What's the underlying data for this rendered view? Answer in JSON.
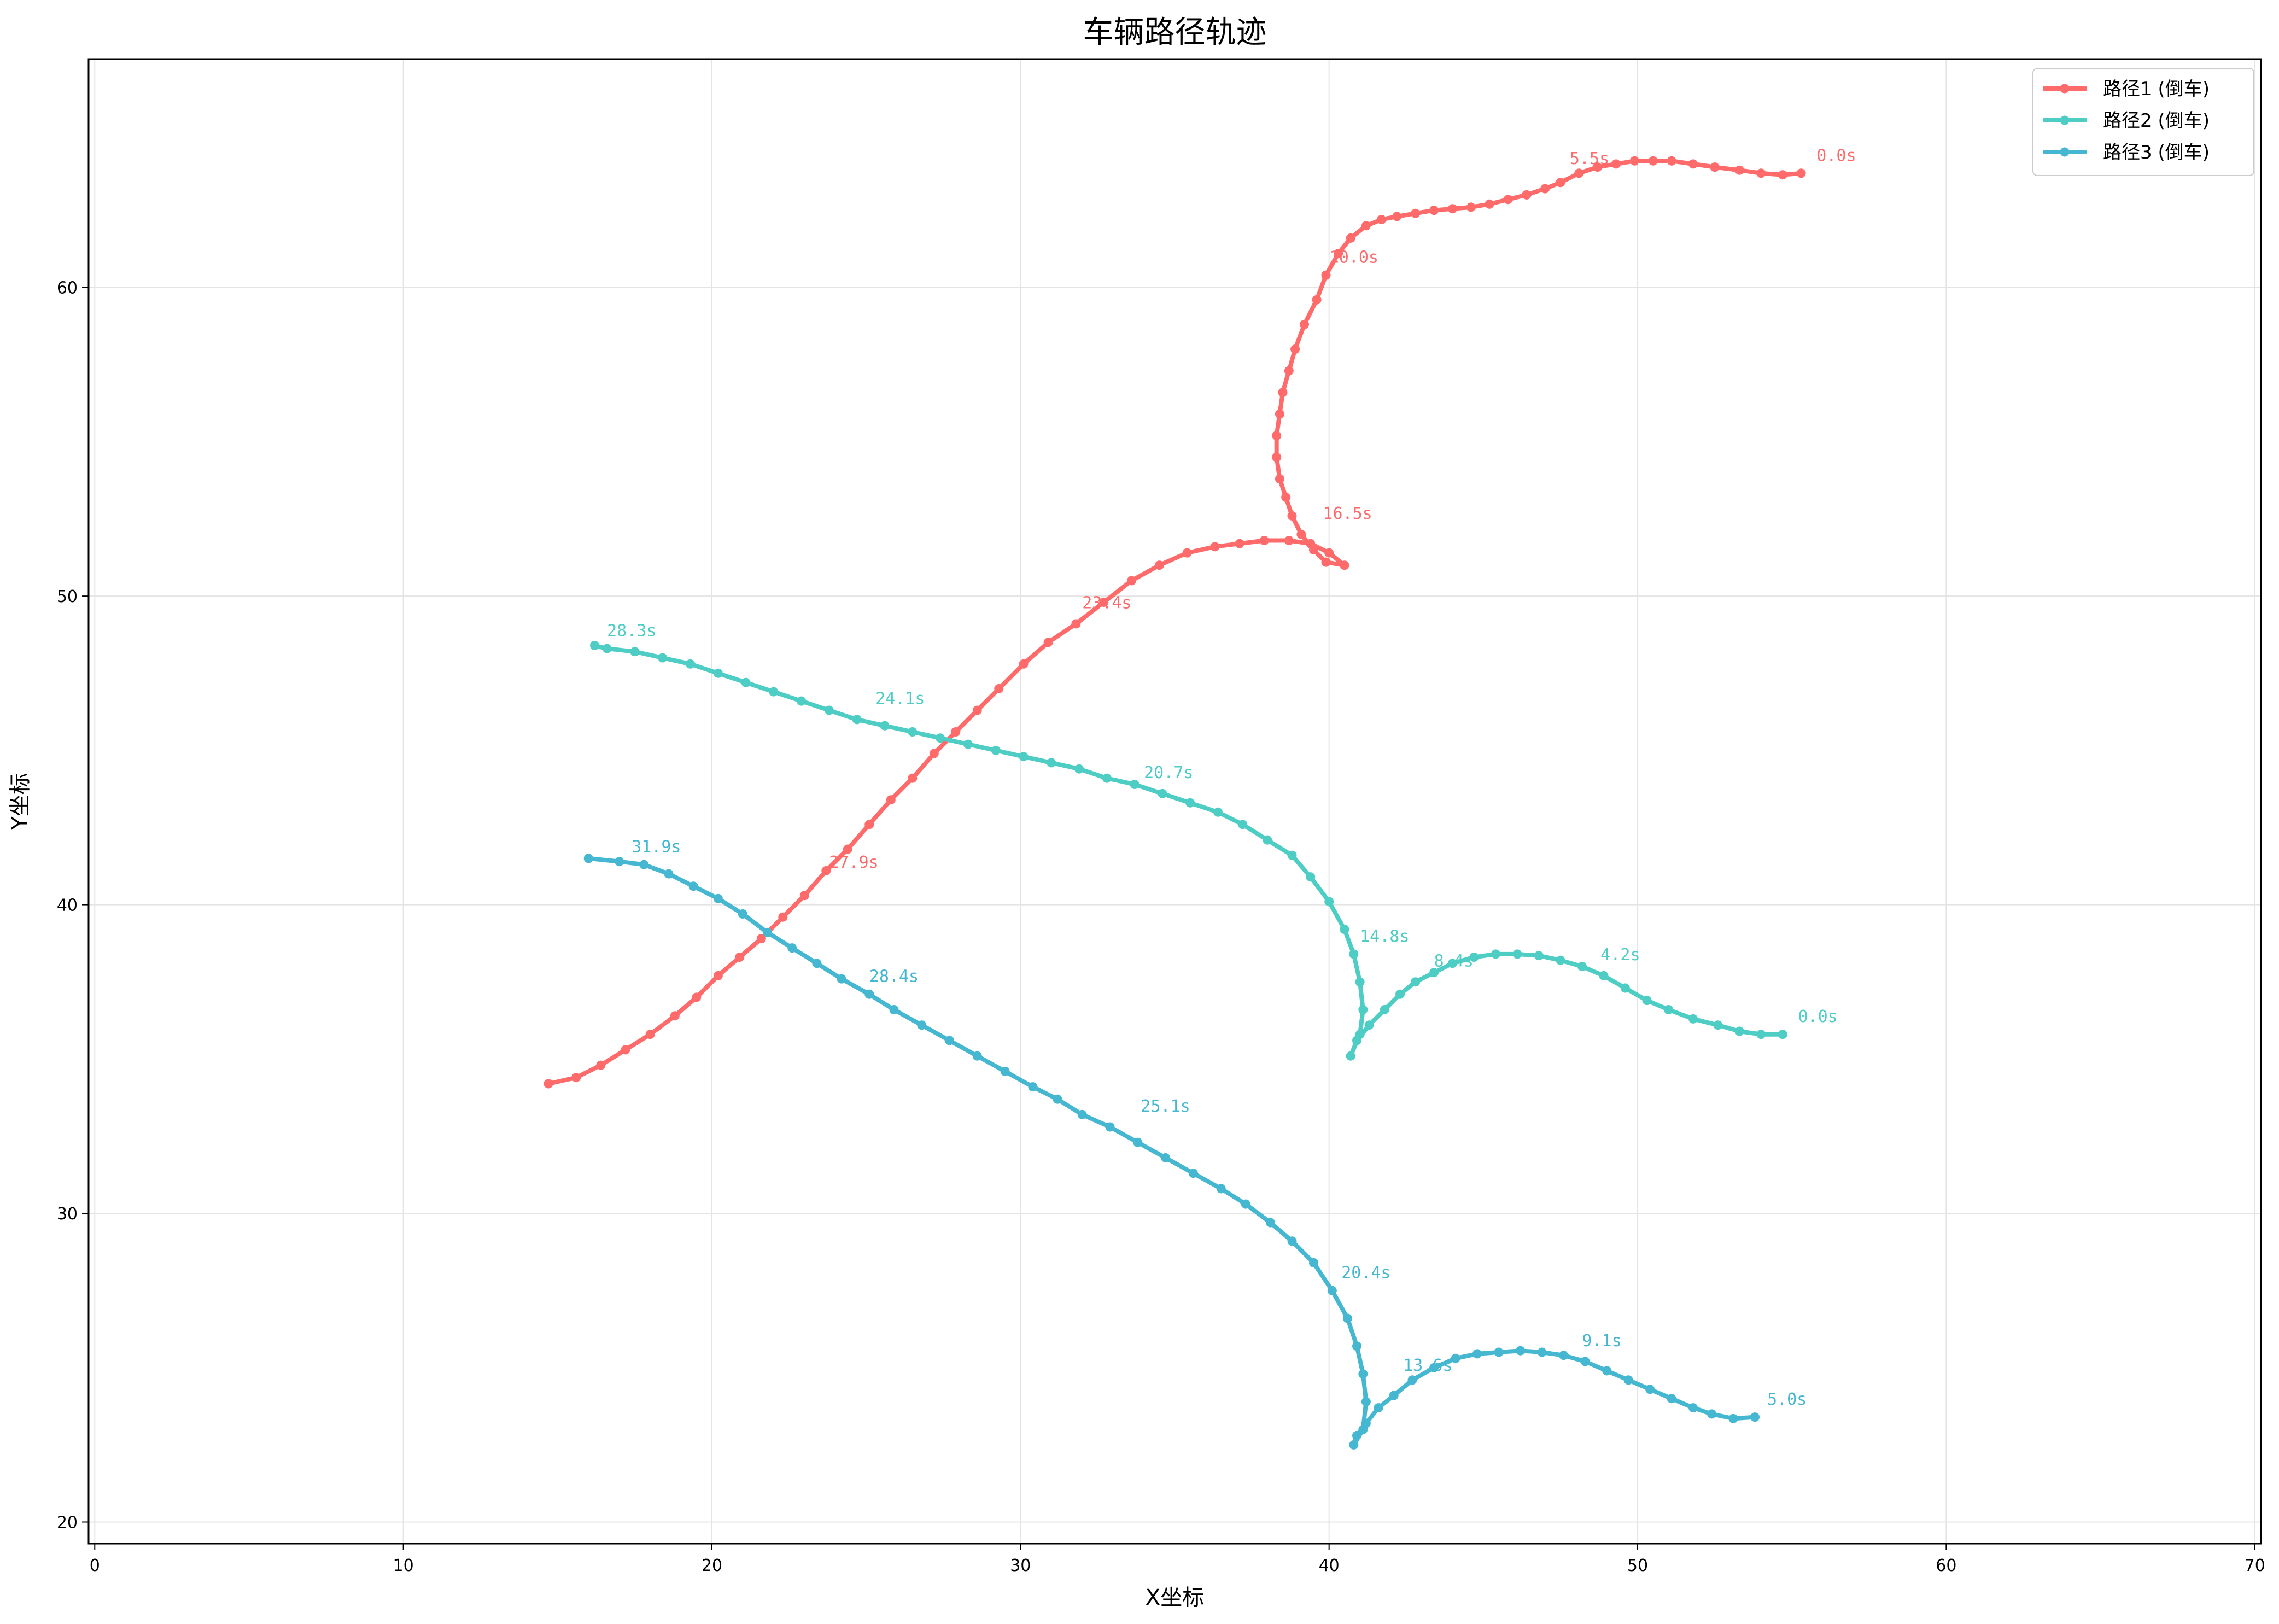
{
  "chart_data": {
    "type": "line",
    "title": "车辆路径轨迹",
    "xlabel": "X坐标",
    "ylabel": "Y坐标",
    "xlim": [
      -0.2,
      70.2
    ],
    "ylim": [
      19.3,
      67.4
    ],
    "xticks": [
      0,
      10,
      20,
      30,
      40,
      50,
      60,
      70
    ],
    "yticks": [
      20,
      30,
      40,
      50,
      60
    ],
    "grid": true,
    "legend": "top-right",
    "series": [
      {
        "name": "路径1 (倒车)",
        "color": "#ff6b6b",
        "points": [
          [
            55.3,
            63.7
          ],
          [
            54.7,
            63.65
          ],
          [
            54.0,
            63.7
          ],
          [
            53.3,
            63.8
          ],
          [
            52.5,
            63.9
          ],
          [
            51.8,
            64.0
          ],
          [
            51.1,
            64.1
          ],
          [
            50.5,
            64.1
          ],
          [
            49.9,
            64.1
          ],
          [
            49.3,
            64.0
          ],
          [
            48.7,
            63.9
          ],
          [
            48.1,
            63.7
          ],
          [
            47.5,
            63.4
          ],
          [
            47.0,
            63.2
          ],
          [
            46.4,
            63.0
          ],
          [
            45.8,
            62.85
          ],
          [
            45.2,
            62.7
          ],
          [
            44.6,
            62.6
          ],
          [
            44.0,
            62.55
          ],
          [
            43.4,
            62.5
          ],
          [
            42.8,
            62.4
          ],
          [
            42.2,
            62.3
          ],
          [
            41.7,
            62.2
          ],
          [
            41.2,
            62.0
          ],
          [
            40.7,
            61.6
          ],
          [
            40.3,
            61.1
          ],
          [
            39.9,
            60.4
          ],
          [
            39.6,
            59.6
          ],
          [
            39.2,
            58.8
          ],
          [
            38.9,
            58.0
          ],
          [
            38.7,
            57.3
          ],
          [
            38.5,
            56.6
          ],
          [
            38.4,
            55.9
          ],
          [
            38.3,
            55.2
          ],
          [
            38.3,
            54.5
          ],
          [
            38.4,
            53.8
          ],
          [
            38.6,
            53.2
          ],
          [
            38.8,
            52.6
          ],
          [
            39.1,
            52.0
          ],
          [
            39.5,
            51.5
          ],
          [
            39.9,
            51.1
          ],
          [
            40.5,
            51.0
          ],
          [
            40.0,
            51.4
          ],
          [
            39.4,
            51.7
          ],
          [
            38.7,
            51.8
          ],
          [
            37.9,
            51.8
          ],
          [
            37.1,
            51.7
          ],
          [
            36.3,
            51.6
          ],
          [
            35.4,
            51.4
          ],
          [
            34.5,
            51.0
          ],
          [
            33.6,
            50.5
          ],
          [
            32.7,
            49.8
          ],
          [
            31.8,
            49.1
          ],
          [
            30.9,
            48.5
          ],
          [
            30.1,
            47.8
          ],
          [
            29.3,
            47.0
          ],
          [
            28.6,
            46.3
          ],
          [
            27.9,
            45.6
          ],
          [
            27.2,
            44.9
          ],
          [
            26.5,
            44.1
          ],
          [
            25.8,
            43.4
          ],
          [
            25.1,
            42.6
          ],
          [
            24.4,
            41.8
          ],
          [
            23.7,
            41.1
          ],
          [
            23.0,
            40.3
          ],
          [
            22.3,
            39.6
          ],
          [
            21.6,
            38.9
          ],
          [
            20.9,
            38.3
          ],
          [
            20.2,
            37.7
          ],
          [
            19.5,
            37.0
          ],
          [
            18.8,
            36.4
          ],
          [
            18.0,
            35.8
          ],
          [
            17.2,
            35.3
          ],
          [
            16.4,
            34.8
          ],
          [
            15.6,
            34.4
          ],
          [
            14.7,
            34.2
          ]
        ]
      },
      {
        "name": "路径2 (倒车)",
        "color": "#4ecdc4",
        "points": [
          [
            54.7,
            35.8
          ],
          [
            54.0,
            35.8
          ],
          [
            53.3,
            35.9
          ],
          [
            52.6,
            36.1
          ],
          [
            51.8,
            36.3
          ],
          [
            51.0,
            36.6
          ],
          [
            50.3,
            36.9
          ],
          [
            49.6,
            37.3
          ],
          [
            48.9,
            37.7
          ],
          [
            48.2,
            38.0
          ],
          [
            47.5,
            38.2
          ],
          [
            46.8,
            38.35
          ],
          [
            46.1,
            38.4
          ],
          [
            45.4,
            38.4
          ],
          [
            44.7,
            38.3
          ],
          [
            44.0,
            38.1
          ],
          [
            43.4,
            37.8
          ],
          [
            42.8,
            37.5
          ],
          [
            42.3,
            37.1
          ],
          [
            41.8,
            36.6
          ],
          [
            41.3,
            36.1
          ],
          [
            40.9,
            35.6
          ],
          [
            40.7,
            35.1
          ],
          [
            41.0,
            35.8
          ],
          [
            41.1,
            36.6
          ],
          [
            41.0,
            37.5
          ],
          [
            40.8,
            38.4
          ],
          [
            40.5,
            39.2
          ],
          [
            40.0,
            40.1
          ],
          [
            39.4,
            40.9
          ],
          [
            38.8,
            41.6
          ],
          [
            38.0,
            42.1
          ],
          [
            37.2,
            42.6
          ],
          [
            36.4,
            43.0
          ],
          [
            35.5,
            43.3
          ],
          [
            34.6,
            43.6
          ],
          [
            33.7,
            43.9
          ],
          [
            32.8,
            44.1
          ],
          [
            31.9,
            44.4
          ],
          [
            31.0,
            44.6
          ],
          [
            30.1,
            44.8
          ],
          [
            29.2,
            45.0
          ],
          [
            28.3,
            45.2
          ],
          [
            27.4,
            45.4
          ],
          [
            26.5,
            45.6
          ],
          [
            25.6,
            45.8
          ],
          [
            24.7,
            46.0
          ],
          [
            23.8,
            46.3
          ],
          [
            22.9,
            46.6
          ],
          [
            22.0,
            46.9
          ],
          [
            21.1,
            47.2
          ],
          [
            20.2,
            47.5
          ],
          [
            19.3,
            47.8
          ],
          [
            18.4,
            48.0
          ],
          [
            17.5,
            48.2
          ],
          [
            16.6,
            48.3
          ],
          [
            16.2,
            48.4
          ]
        ]
      },
      {
        "name": "路径3 (倒车)",
        "color": "#45b7d1",
        "points": [
          [
            53.8,
            23.4
          ],
          [
            53.1,
            23.35
          ],
          [
            52.4,
            23.5
          ],
          [
            51.8,
            23.7
          ],
          [
            51.1,
            24.0
          ],
          [
            50.4,
            24.3
          ],
          [
            49.7,
            24.6
          ],
          [
            49.0,
            24.9
          ],
          [
            48.3,
            25.2
          ],
          [
            47.6,
            25.4
          ],
          [
            46.9,
            25.5
          ],
          [
            46.2,
            25.55
          ],
          [
            45.5,
            25.5
          ],
          [
            44.8,
            25.45
          ],
          [
            44.1,
            25.3
          ],
          [
            43.4,
            25.0
          ],
          [
            42.7,
            24.6
          ],
          [
            42.1,
            24.1
          ],
          [
            41.6,
            23.7
          ],
          [
            41.2,
            23.2
          ],
          [
            40.9,
            22.8
          ],
          [
            40.8,
            22.5
          ],
          [
            41.1,
            23.0
          ],
          [
            41.2,
            23.9
          ],
          [
            41.1,
            24.8
          ],
          [
            40.9,
            25.7
          ],
          [
            40.6,
            26.6
          ],
          [
            40.1,
            27.5
          ],
          [
            39.5,
            28.4
          ],
          [
            38.8,
            29.1
          ],
          [
            38.1,
            29.7
          ],
          [
            37.3,
            30.3
          ],
          [
            36.5,
            30.8
          ],
          [
            35.6,
            31.3
          ],
          [
            34.7,
            31.8
          ],
          [
            33.8,
            32.3
          ],
          [
            32.9,
            32.8
          ],
          [
            32.0,
            33.2
          ],
          [
            31.2,
            33.7
          ],
          [
            30.4,
            34.1
          ],
          [
            29.5,
            34.6
          ],
          [
            28.6,
            35.1
          ],
          [
            27.7,
            35.6
          ],
          [
            26.8,
            36.1
          ],
          [
            25.9,
            36.6
          ],
          [
            25.1,
            37.1
          ],
          [
            24.2,
            37.6
          ],
          [
            23.4,
            38.1
          ],
          [
            22.6,
            38.6
          ],
          [
            21.8,
            39.1
          ],
          [
            21.0,
            39.7
          ],
          [
            20.2,
            40.2
          ],
          [
            19.4,
            40.6
          ],
          [
            18.6,
            41.0
          ],
          [
            17.8,
            41.3
          ],
          [
            17.0,
            41.4
          ],
          [
            16.0,
            41.5
          ]
        ]
      }
    ],
    "annotations": [
      {
        "text": "0.0s",
        "x": 55.8,
        "y": 64.1,
        "series": 0
      },
      {
        "text": "5.5s",
        "x": 47.8,
        "y": 64.0,
        "series": 0
      },
      {
        "text": "10.0s",
        "x": 40.0,
        "y": 60.8,
        "series": 0
      },
      {
        "text": "16.5s",
        "x": 39.8,
        "y": 52.5,
        "series": 0
      },
      {
        "text": "23.4s",
        "x": 32.0,
        "y": 49.6,
        "series": 0
      },
      {
        "text": "27.9s",
        "x": 23.8,
        "y": 41.2,
        "series": 0
      },
      {
        "text": "0.0s",
        "x": 55.2,
        "y": 36.2,
        "series": 1
      },
      {
        "text": "4.2s",
        "x": 48.8,
        "y": 38.2,
        "series": 1
      },
      {
        "text": "8.4s",
        "x": 43.4,
        "y": 38.0,
        "series": 1
      },
      {
        "text": "14.8s",
        "x": 41.0,
        "y": 38.8,
        "series": 1
      },
      {
        "text": "20.7s",
        "x": 34.0,
        "y": 44.1,
        "series": 1
      },
      {
        "text": "24.1s",
        "x": 25.3,
        "y": 46.5,
        "series": 1
      },
      {
        "text": "28.3s",
        "x": 16.6,
        "y": 48.7,
        "series": 1
      },
      {
        "text": "5.0s",
        "x": 54.2,
        "y": 23.8,
        "series": 2
      },
      {
        "text": "9.1s",
        "x": 48.2,
        "y": 25.7,
        "series": 2
      },
      {
        "text": "13.6s",
        "x": 42.4,
        "y": 24.9,
        "series": 2
      },
      {
        "text": "20.4s",
        "x": 40.4,
        "y": 27.9,
        "series": 2
      },
      {
        "text": "25.1s",
        "x": 33.9,
        "y": 33.3,
        "series": 2
      },
      {
        "text": "28.4s",
        "x": 25.1,
        "y": 37.5,
        "series": 2
      },
      {
        "text": "31.9s",
        "x": 17.4,
        "y": 41.7,
        "series": 2
      }
    ]
  }
}
